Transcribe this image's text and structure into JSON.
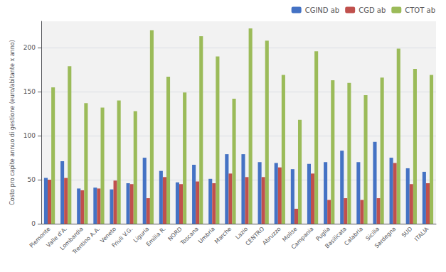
{
  "chart_data": {
    "type": "bar",
    "ylabel": "Costo pro capite annuo di gestione (euro/abitante x anno)",
    "categories": [
      "Piemonte",
      "Valle d'A.",
      "Lombardia",
      "Trentino A.A.",
      "Veneto",
      "Friuli V.G.",
      "Liguria",
      "Emilia R.",
      "NORD",
      "Toscana",
      "Umbria",
      "Marche",
      "Lazio",
      "CENTRO",
      "Abruzzo",
      "Molise",
      "Campania",
      "Puglia",
      "Basilicata",
      "Calabria",
      "Sicilia",
      "Sardegna",
      "SUD",
      "ITALIA"
    ],
    "series": [
      {
        "name": "CGIND ab",
        "color": "#4472c4",
        "values": [
          52,
          71,
          40,
          41,
          39,
          46,
          75,
          60,
          47,
          67,
          51,
          79,
          79,
          70,
          69,
          62,
          68,
          70,
          83,
          70,
          93,
          75,
          63,
          59
        ]
      },
      {
        "name": "CGD ab",
        "color": "#c0504d",
        "values": [
          50,
          52,
          38,
          40,
          49,
          45,
          29,
          53,
          45,
          48,
          46,
          57,
          53,
          53,
          64,
          17,
          57,
          27,
          29,
          27,
          29,
          69,
          45,
          46
        ]
      },
      {
        "name": "CTOT ab",
        "color": "#9bbb59",
        "values": [
          155,
          179,
          137,
          132,
          140,
          128,
          220,
          167,
          149,
          213,
          190,
          142,
          222,
          208,
          169,
          118,
          196,
          163,
          160,
          146,
          166,
          199,
          176,
          169
        ]
      }
    ],
    "ylim": [
      0,
      230
    ],
    "yticks": [
      0,
      50,
      100,
      150,
      200
    ],
    "grid": true,
    "legend": "upper right"
  }
}
